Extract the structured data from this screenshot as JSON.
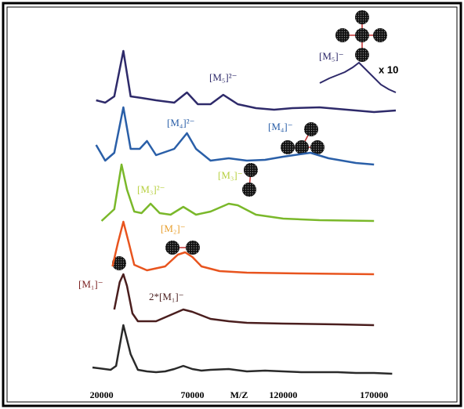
{
  "chart_data": {
    "type": "line",
    "xlabel": "M/Z",
    "xlim": [
      15000,
      182000
    ],
    "xticks": [
      20000,
      70000,
      120000,
      170000
    ],
    "series": [
      {
        "color": "#2a2a2a",
        "x": [
          15000,
          25000,
          28000,
          32000,
          36000,
          40000,
          45000,
          50000,
          55000,
          60000,
          65000,
          70000,
          75000,
          80000,
          90000,
          100000,
          110000,
          120000,
          130000,
          140000,
          150000,
          160000,
          170000,
          180000
        ],
        "values": [
          8,
          5,
          10,
          62,
          25,
          5,
          3,
          2,
          3,
          6,
          10,
          6,
          4,
          5,
          6,
          3,
          4,
          3,
          2,
          2,
          2,
          1,
          1,
          0
        ]
      },
      {
        "color": "#4a1e1e",
        "x": [
          27000,
          30000,
          32000,
          34000,
          37000,
          40000,
          50000,
          60000,
          65000,
          70000,
          80000,
          90000,
          100000,
          120000,
          150000,
          170000
        ],
        "values": [
          20,
          55,
          65,
          50,
          15,
          5,
          5,
          15,
          20,
          17,
          8,
          5,
          3,
          2,
          1,
          0
        ]
      },
      {
        "color": "#e8541e",
        "x": [
          26000,
          29000,
          32000,
          35000,
          38000,
          45000,
          55000,
          62000,
          66000,
          70000,
          75000,
          85000,
          100000,
          130000,
          170000
        ],
        "values": [
          10,
          40,
          67,
          40,
          12,
          5,
          10,
          25,
          28,
          22,
          10,
          4,
          2,
          1,
          0
        ]
      },
      {
        "color": "#7ab82a",
        "x": [
          20000,
          27000,
          31000,
          34000,
          38000,
          42000,
          47000,
          52000,
          58000,
          65000,
          72000,
          80000,
          90000,
          95000,
          105000,
          120000,
          140000,
          170000
        ],
        "values": [
          0,
          15,
          72,
          40,
          12,
          10,
          22,
          10,
          8,
          18,
          8,
          12,
          22,
          20,
          8,
          3,
          1,
          0
        ]
      },
      {
        "color": "#2a5fa8",
        "x": [
          17000,
          22000,
          27000,
          32000,
          36000,
          41000,
          45000,
          50000,
          60000,
          67000,
          72000,
          80000,
          90000,
          100000,
          110000,
          120000,
          135000,
          145000,
          160000,
          170000
        ],
        "values": [
          25,
          5,
          15,
          73,
          20,
          20,
          30,
          12,
          20,
          40,
          20,
          5,
          8,
          5,
          6,
          10,
          15,
          8,
          2,
          0
        ]
      },
      {
        "color": "#2e2a6a",
        "x": [
          17000,
          22000,
          27000,
          32000,
          36000,
          42000,
          50000,
          60000,
          67000,
          73000,
          80000,
          87000,
          95000,
          105000,
          115000,
          125000,
          140000,
          155000,
          170000,
          182000
        ],
        "values": [
          15,
          12,
          20,
          78,
          20,
          18,
          15,
          12,
          25,
          10,
          10,
          22,
          10,
          5,
          3,
          5,
          6,
          3,
          0,
          2
        ]
      }
    ],
    "annotations": [
      {
        "text": "[M₅]²⁻",
        "color": "#2e2a6a"
      },
      {
        "text": "[M₄]²⁻",
        "color": "#2a5fa8"
      },
      {
        "text": "[M₄]⁻",
        "color": "#2a5fa8"
      },
      {
        "text": "[M₃]²⁻",
        "color": "#b8d040"
      },
      {
        "text": "[M₃]⁻",
        "color": "#b8d040"
      },
      {
        "text": "[M₂]⁻",
        "color": "#e8a030"
      },
      {
        "text": "[M₁]⁻",
        "color": "#7a1e1e"
      },
      {
        "text": "2*[M₁]⁻",
        "color": "#4a1e1e"
      },
      {
        "text": "[M₅]⁻",
        "color": "#2e2a6a"
      },
      {
        "text": "x 10",
        "color": "#000000"
      }
    ]
  }
}
